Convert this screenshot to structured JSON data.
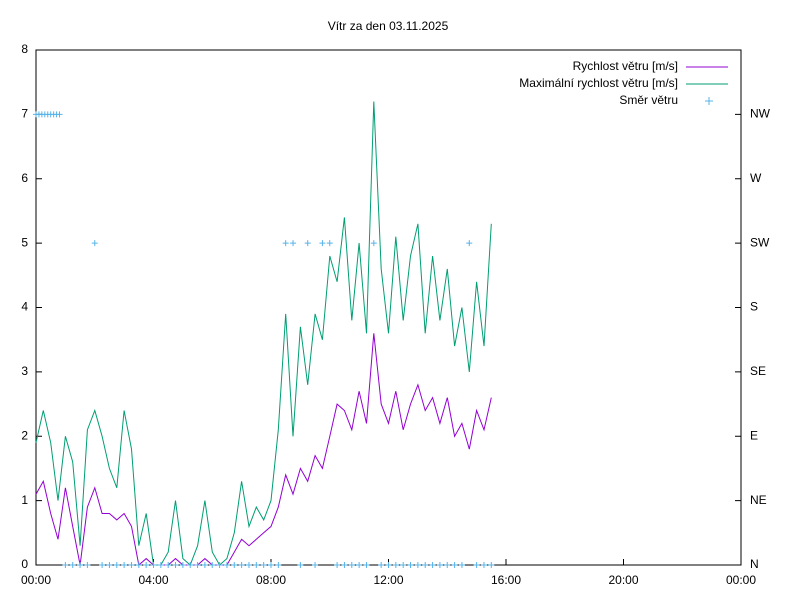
{
  "chart_data": {
    "type": "line",
    "title": "Vítr za den 03.11.2025",
    "x": [
      0,
      0.25,
      0.5,
      0.75,
      1,
      1.25,
      1.5,
      1.75,
      2,
      2.25,
      2.5,
      2.75,
      3,
      3.25,
      3.5,
      3.75,
      4,
      4.25,
      4.5,
      4.75,
      5,
      5.25,
      5.5,
      5.75,
      6,
      6.25,
      6.5,
      6.75,
      7,
      7.25,
      7.5,
      7.75,
      8,
      8.25,
      8.5,
      8.75,
      9,
      9.25,
      9.5,
      9.75,
      10,
      10.25,
      10.5,
      10.75,
      11,
      11.25,
      11.5,
      11.75,
      12,
      12.25,
      12.5,
      12.75,
      13,
      13.25,
      13.5,
      13.75,
      14,
      14.25,
      14.5,
      14.75,
      15,
      15.25,
      15.5
    ],
    "series": [
      {
        "name": "Rychlost větru [m/s]",
        "color": "#9400d3",
        "values": [
          1.1,
          1.3,
          0.8,
          0.4,
          1.2,
          0.6,
          0,
          0.9,
          1.2,
          0.8,
          0.8,
          0.7,
          0.8,
          0.6,
          0,
          0.1,
          0,
          0,
          0,
          0.1,
          0,
          0,
          0,
          0.1,
          0,
          0,
          0,
          0.2,
          0.4,
          0.3,
          0.4,
          0.5,
          0.6,
          0.9,
          1.4,
          1.1,
          1.5,
          1.3,
          1.7,
          1.5,
          2,
          2.5,
          2.4,
          2.1,
          2.7,
          2.2,
          3.6,
          2.5,
          2.2,
          2.7,
          2.1,
          2.5,
          2.8,
          2.4,
          2.6,
          2.2,
          2.6,
          2,
          2.2,
          1.8,
          2.4,
          2.1,
          2.6
        ]
      },
      {
        "name": "Maximální rychlost větru [m/s]",
        "color": "#009e73",
        "values": [
          1.9,
          2.4,
          1.9,
          1,
          2,
          1.6,
          0.3,
          2.1,
          2.4,
          2,
          1.5,
          1.2,
          2.4,
          1.8,
          0.3,
          0.8,
          0,
          0,
          0.2,
          1,
          0.1,
          0,
          0.3,
          1,
          0.2,
          0,
          0.1,
          0.5,
          1.3,
          0.6,
          0.9,
          0.7,
          1,
          2.1,
          3.9,
          2,
          3.7,
          2.8,
          3.9,
          3.5,
          4.8,
          4.4,
          5.4,
          3.8,
          5,
          3.6,
          7.2,
          4.6,
          3.6,
          5.1,
          3.8,
          4.8,
          5.3,
          3.6,
          4.8,
          3.8,
          4.6,
          3.4,
          4,
          3,
          4.4,
          3.4,
          5.3
        ]
      },
      {
        "name": "Směr větru",
        "color": "#56b4e9",
        "axis": "y2",
        "x": [
          0,
          0.1,
          0.2,
          0.3,
          0.4,
          0.5,
          0.6,
          0.7,
          0.8,
          1,
          1.25,
          1.5,
          1.75,
          2,
          2.25,
          2.5,
          2.75,
          3,
          3.25,
          3.5,
          3.75,
          4,
          4.25,
          4.5,
          4.75,
          5,
          5.25,
          5.5,
          5.75,
          6,
          6.25,
          6.5,
          6.75,
          7,
          7.25,
          7.5,
          7.75,
          8,
          8.25,
          8.5,
          8.75,
          9,
          9.25,
          9.5,
          9.75,
          10,
          10.25,
          10.5,
          10.75,
          11,
          11.25,
          11.5,
          11.75,
          12,
          12.25,
          12.5,
          12.75,
          13,
          13.25,
          13.5,
          13.75,
          14,
          14.25,
          14.5,
          14.75,
          15,
          15.25,
          15.5
        ],
        "values": [
          7,
          7,
          7,
          7,
          7,
          7,
          7,
          7,
          7,
          0,
          0,
          0,
          0,
          5,
          0,
          0,
          0,
          0,
          0,
          0,
          0,
          0,
          0,
          0,
          0,
          0,
          0,
          0,
          0,
          0,
          0,
          0,
          0,
          0,
          0,
          0,
          0,
          0,
          0,
          5,
          5,
          0,
          5,
          0,
          5,
          5,
          0,
          0,
          0,
          0,
          0,
          5,
          0,
          0,
          0,
          0,
          0,
          0,
          0,
          0,
          0,
          0,
          0,
          0,
          5,
          0,
          0,
          0
        ]
      }
    ],
    "xlim": [
      0,
      24
    ],
    "xticks": [
      {
        "value": 0,
        "label": "00:00"
      },
      {
        "value": 4,
        "label": "04:00"
      },
      {
        "value": 8,
        "label": "08:00"
      },
      {
        "value": 12,
        "label": "12:00"
      },
      {
        "value": 16,
        "label": "16:00"
      },
      {
        "value": 20,
        "label": "20:00"
      },
      {
        "value": 24,
        "label": "00:00"
      }
    ],
    "ylim": [
      0,
      8
    ],
    "yticks": [
      0,
      1,
      2,
      3,
      4,
      5,
      6,
      7,
      8
    ],
    "y2lim": [
      0,
      8
    ],
    "y2ticks": [
      {
        "value": 0,
        "label": "N"
      },
      {
        "value": 1,
        "label": "NE"
      },
      {
        "value": 2,
        "label": "E"
      },
      {
        "value": 3,
        "label": "SE"
      },
      {
        "value": 4,
        "label": "S"
      },
      {
        "value": 5,
        "label": "SW"
      },
      {
        "value": 6,
        "label": "W"
      },
      {
        "value": 7,
        "label": "NW"
      }
    ],
    "legend": "top-right"
  }
}
